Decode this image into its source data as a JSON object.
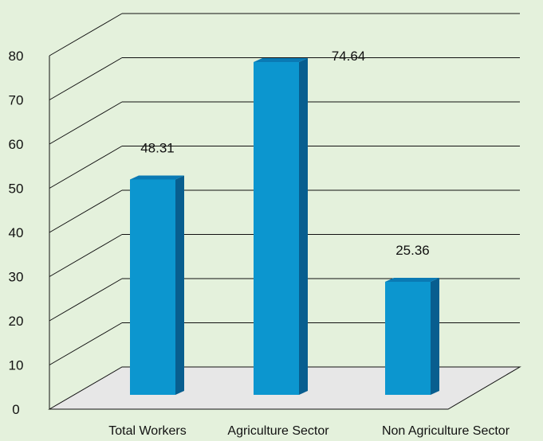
{
  "chart_data": {
    "type": "bar",
    "categories": [
      "Total Workers",
      "Agriculture Sector",
      "Non Agriculture Sector"
    ],
    "values": [
      48.31,
      74.64,
      25.36
    ],
    "data_labels": [
      "48.31",
      "74.64",
      "25.36"
    ],
    "ylim": [
      0,
      80
    ],
    "yticks": [
      0,
      10,
      20,
      30,
      40,
      50,
      60,
      70,
      80
    ],
    "grid": true,
    "style": "3d-column",
    "colors": {
      "background": "#e4f1dc",
      "floor": "#e7e7e7",
      "bar_front": "#0c96cf",
      "bar_side": "#085e8f",
      "bar_top": "#0a7ab4",
      "grid": "#111111"
    }
  }
}
